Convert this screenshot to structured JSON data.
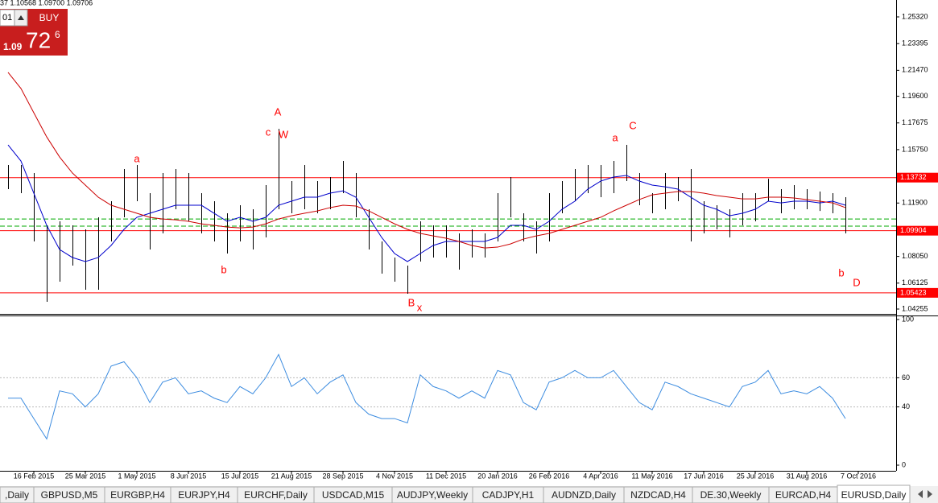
{
  "header_text": "37 1.10568 1.09700 1.09706",
  "trade_panel": {
    "volume": "01",
    "button": "BUY",
    "price_small": "1.09",
    "price_big": "72",
    "price_pip": "6"
  },
  "chart_data": [
    {
      "type": "ohlc",
      "bar_color": "#000000",
      "categories": [
        null,
        null,
        "16 Feb 2015",
        null,
        null,
        null,
        "25 Mar 2015",
        null,
        null,
        null,
        "1 May 2015",
        null,
        null,
        null,
        "8 Jun 2015",
        null,
        null,
        null,
        "15 Jul 2015",
        null,
        null,
        null,
        "21 Aug 2015",
        null,
        null,
        null,
        "28 Sep 2015",
        null,
        null,
        null,
        "4 Nov 2015",
        null,
        null,
        null,
        "11 Dec 2015",
        null,
        null,
        null,
        "20 Jan 2016",
        null,
        null,
        null,
        "26 Feb 2016",
        null,
        null,
        null,
        "4 Apr 2016",
        null,
        null,
        null,
        "11 May 2016",
        null,
        null,
        null,
        "17 Jun 2016",
        null,
        null,
        null,
        "25 Jul 2016",
        null,
        null,
        null,
        "31 Aug 2016",
        null,
        null,
        null,
        "7 Oct 2016"
      ],
      "high": [
        1.1464,
        1.1464,
        1.1406,
        1.1029,
        1.1058,
        1.1029,
        1.1,
        1.1087,
        1.1203,
        1.1435,
        1.1464,
        1.1261,
        1.1406,
        1.1435,
        1.1406,
        1.1261,
        1.1203,
        1.1116,
        1.1174,
        1.1145,
        1.1319,
        1.1725,
        1.1348,
        1.1464,
        1.1348,
        1.1377,
        1.1493,
        1.1406,
        1.1145,
        1.0913,
        1.0797,
        1.0739,
        1.1058,
        1.1029,
        1.1029,
        1.0971,
        1.1,
        1.0971,
        1.1261,
        1.1377,
        1.1116,
        1.1058,
        1.1261,
        1.1348,
        1.1435,
        1.1464,
        1.1464,
        1.1493,
        1.1609,
        1.1406,
        1.1261,
        1.1406,
        1.1377,
        1.1435,
        1.1203,
        1.1174,
        1.1145,
        1.1261,
        1.1261,
        1.1365,
        1.129,
        1.1319,
        1.129,
        1.1273,
        1.1261,
        1.1232,
        null
      ],
      "low": [
        1.129,
        1.1261,
        1.0913,
        1.0478,
        1.0623,
        1.0739,
        1.0565,
        1.0565,
        1.0913,
        1.1087,
        1.1203,
        1.0855,
        1.0971,
        1.1145,
        1.1058,
        1.0971,
        1.0913,
        1.0826,
        1.0913,
        1.0855,
        1.0942,
        1.1145,
        1.1116,
        1.1145,
        1.1116,
        1.1145,
        1.1261,
        1.1087,
        1.0855,
        1.0681,
        1.0623,
        1.0536,
        1.0768,
        1.0797,
        1.0797,
        1.071,
        1.0797,
        1.0797,
        1.0913,
        1.1087,
        1.0913,
        1.0826,
        1.0913,
        1.1116,
        1.1203,
        1.1261,
        1.1232,
        1.1261,
        1.1348,
        1.1174,
        1.1116,
        1.1145,
        1.1203,
        1.0913,
        1.0971,
        1.1,
        1.0942,
        1.1029,
        1.1058,
        1.1203,
        1.1116,
        1.1145,
        1.1145,
        1.1133,
        1.1116,
        1.0971,
        null
      ],
      "moving_averages": [
        {
          "color": "#0000cc",
          "values": [
            1.1609,
            1.1493,
            1.1261,
            1.1029,
            1.0855,
            1.0797,
            1.0768,
            1.0797,
            1.0884,
            1.1,
            1.1087,
            1.1116,
            1.1145,
            1.1174,
            1.1174,
            1.1174,
            1.1116,
            1.1058,
            1.1087,
            1.1058,
            1.1087,
            1.1174,
            1.1203,
            1.1232,
            1.1232,
            1.1261,
            1.1278,
            1.1232,
            1.1087,
            1.0942,
            1.0826,
            1.0768,
            1.0826,
            1.0884,
            1.0913,
            1.0913,
            1.0913,
            1.0913,
            1.0942,
            1.1029,
            1.1029,
            1.1,
            1.1058,
            1.1145,
            1.1203,
            1.129,
            1.1348,
            1.1377,
            1.1389,
            1.1348,
            1.1319,
            1.1307,
            1.129,
            1.1232,
            1.1174,
            1.1145,
            1.1098,
            1.1116,
            1.1145,
            1.1203,
            1.1191,
            1.1203,
            1.1203,
            1.1191,
            1.1203,
            1.1174,
            null
          ]
        },
        {
          "color": "#cc0000",
          "values": [
            1.2132,
            1.2016,
            1.1841,
            1.1667,
            1.1522,
            1.1406,
            1.1319,
            1.1232,
            1.1174,
            1.1145,
            1.1116,
            1.1087,
            1.1075,
            1.1069,
            1.1058,
            1.104,
            1.1029,
            1.1017,
            1.1011,
            1.1017,
            1.104,
            1.1075,
            1.1098,
            1.1116,
            1.1133,
            1.1157,
            1.1174,
            1.1168,
            1.1133,
            1.1087,
            1.104,
            1.1,
            1.0971,
            1.0953,
            1.0936,
            1.0913,
            1.0884,
            1.0866,
            1.0872,
            1.0895,
            1.093,
            1.0953,
            1.0971,
            1.1,
            1.1029,
            1.1058,
            1.1087,
            1.1133,
            1.1174,
            1.1215,
            1.1249,
            1.1261,
            1.1273,
            1.1273,
            1.1261,
            1.1244,
            1.1232,
            1.122,
            1.122,
            1.1232,
            1.1232,
            1.1226,
            1.1215,
            1.1203,
            1.1191,
            1.1157,
            null
          ]
        }
      ],
      "levels": [
        1.13732,
        1.09904,
        1.05423
      ],
      "level_color": "#ff0000",
      "dashed_levels": [
        1.1075,
        1.1023
      ],
      "dashed_color": "#00aa00",
      "annotations": [
        {
          "text": "A"
        },
        {
          "text": "c"
        },
        {
          "text": "W"
        },
        {
          "text": "a"
        },
        {
          "text": "b"
        },
        {
          "text": "B"
        },
        {
          "text": "x"
        },
        {
          "text": "a"
        },
        {
          "text": "C"
        },
        {
          "text": "b"
        },
        {
          "text": "D"
        }
      ],
      "annotation_color": "#ff0000",
      "ylim": [
        1.03907,
        1.26539
      ],
      "yticks": [
        {
          "value": 1.2532,
          "label": "1.25320"
        },
        {
          "value": 1.23395,
          "label": "1.23395"
        },
        {
          "value": 1.2147,
          "label": "1.21470"
        },
        {
          "value": 1.196,
          "label": "1.19600"
        },
        {
          "value": 1.17675,
          "label": "1.17675"
        },
        {
          "value": 1.1575,
          "label": "1.15750"
        },
        {
          "value": 1.119,
          "label": "1.11900"
        },
        {
          "value": 1.0805,
          "label": "1.08050"
        },
        {
          "value": 1.06125,
          "label": "1.06125"
        },
        {
          "value": 1.04255,
          "label": "1.04255"
        }
      ]
    },
    {
      "type": "line",
      "color": "#3c8ce0",
      "values": [
        46,
        46,
        32,
        18,
        51,
        49,
        40,
        49,
        68,
        71,
        60,
        43,
        57,
        60,
        49,
        51,
        46,
        43,
        54,
        49,
        60,
        76,
        54,
        60,
        49,
        57,
        62,
        43,
        35,
        32,
        32,
        29,
        62,
        54,
        51,
        46,
        51,
        46,
        65,
        62,
        43,
        38,
        57,
        60,
        65,
        60,
        60,
        65,
        54,
        43,
        38,
        57,
        54,
        49,
        46,
        43,
        40,
        54,
        57,
        65,
        49,
        51,
        49,
        54,
        46,
        32,
        null
      ],
      "ylim": [
        0,
        100
      ],
      "yticks": [
        100,
        60,
        40,
        0
      ],
      "grid": true
    }
  ],
  "tabs": [
    ",Daily",
    "GBPUSD,M5",
    "EURGBP,H4",
    "EURJPY,H4",
    "EURCHF,Daily",
    "USDCAD,M15",
    "AUDJPY,Weekly",
    "CADJPY,H1",
    "AUDNZD,Daily",
    "NZDCAD,H4",
    "DE.30,Weekly",
    "EURCAD,H4",
    "EURUSD,Daily"
  ],
  "active_tab": 12
}
